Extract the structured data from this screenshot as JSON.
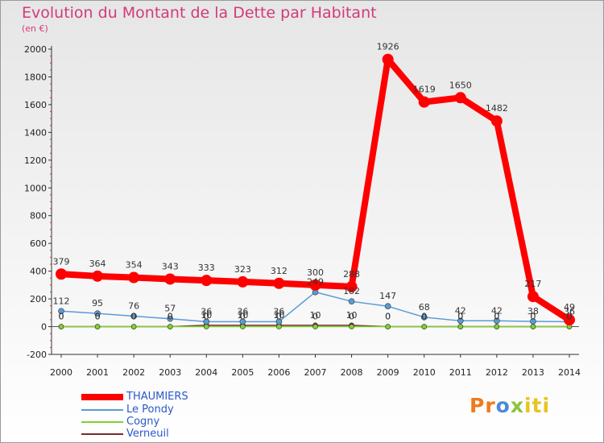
{
  "chart_data": {
    "type": "line",
    "title": "Evolution du Montant de la Dette par Habitant",
    "subtitle": "(en €)",
    "x": [
      "2000",
      "2001",
      "2002",
      "2003",
      "2004",
      "2005",
      "2006",
      "2007",
      "2008",
      "2009",
      "2010",
      "2011",
      "2012",
      "2013",
      "2014"
    ],
    "ylim": [
      -200,
      2000
    ],
    "yticks": [
      -200,
      0,
      200,
      400,
      600,
      800,
      1000,
      1200,
      1400,
      1600,
      1800,
      2000
    ],
    "series": [
      {
        "name": "THAUMIERS",
        "color": "#ff0000",
        "values": [
          379,
          364,
          354,
          343,
          333,
          323,
          312,
          300,
          288,
          1926,
          1619,
          1650,
          1482,
          217,
          49
        ]
      },
      {
        "name": "Le Pondy",
        "color": "#5b9bd5",
        "values": [
          112,
          95,
          76,
          57,
          36,
          36,
          36,
          249,
          182,
          147,
          68,
          42,
          42,
          38,
          36
        ]
      },
      {
        "name": "Cogny",
        "color": "#7fd22e",
        "values": [
          0,
          0,
          0,
          0,
          0,
          0,
          0,
          0,
          0,
          0,
          0,
          0,
          0,
          0,
          0
        ]
      },
      {
        "name": "Verneuil",
        "color": "#7a2a2a",
        "values": [
          0,
          0,
          0,
          0,
          10,
          10,
          10,
          10,
          10,
          0,
          0,
          0,
          0,
          0,
          0
        ]
      }
    ],
    "data_labels": {
      "THAUMIERS": [
        "379",
        "364",
        "354",
        "343",
        "333",
        "323",
        "312",
        "300",
        "288",
        "1926",
        "1619",
        "1650",
        "1482",
        "217",
        "49"
      ],
      "Le Pondy": [
        "112",
        "95",
        "76",
        "57",
        "36",
        "36",
        "36",
        "249",
        "182",
        "147",
        "68",
        "42",
        "42",
        "38",
        "36"
      ],
      "Cogny": [
        "0",
        "0",
        "0",
        "0",
        "0",
        "0",
        "0",
        "0",
        "0",
        "0",
        "0",
        "0",
        "0",
        "0",
        "0"
      ],
      "Verneuil": [
        "0",
        "0",
        "0",
        "0",
        "10",
        "10",
        "10",
        "10",
        "10",
        "0",
        "0",
        "0",
        "0",
        "0",
        "0"
      ]
    },
    "grid": false,
    "legend": "bottom-left"
  },
  "logo": {
    "p1": "Pr",
    "p2": "o",
    "p3": "x",
    "p4": "iti"
  }
}
